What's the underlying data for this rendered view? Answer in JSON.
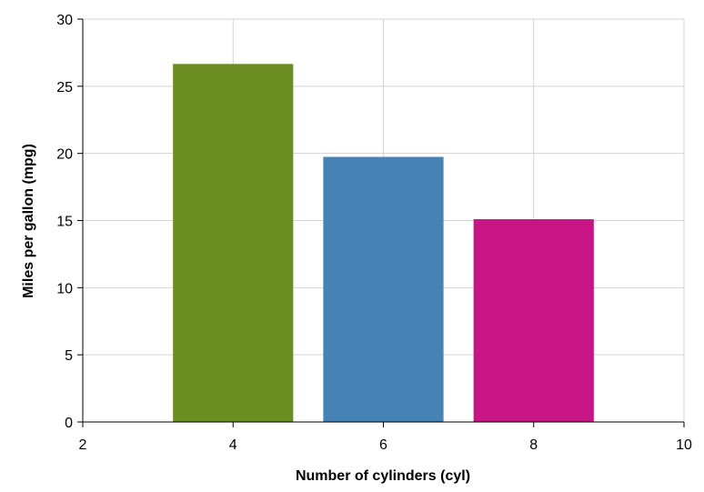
{
  "chart_data": {
    "type": "bar",
    "title": "",
    "xlabel": "Number of cylinders (cyl)",
    "ylabel": "Miles per gallon (mpg)",
    "xlim": [
      2,
      10
    ],
    "ylim": [
      0,
      30
    ],
    "xticks": [
      2,
      4,
      6,
      8,
      10
    ],
    "yticks": [
      0,
      5,
      10,
      15,
      20,
      25,
      30
    ],
    "grid": true,
    "bar_width": 1.6,
    "categories": [
      4,
      6,
      8
    ],
    "values": [
      26.66,
      19.74,
      15.1
    ],
    "colors": [
      "#6b8e23",
      "#4682b4",
      "#c71585"
    ]
  }
}
